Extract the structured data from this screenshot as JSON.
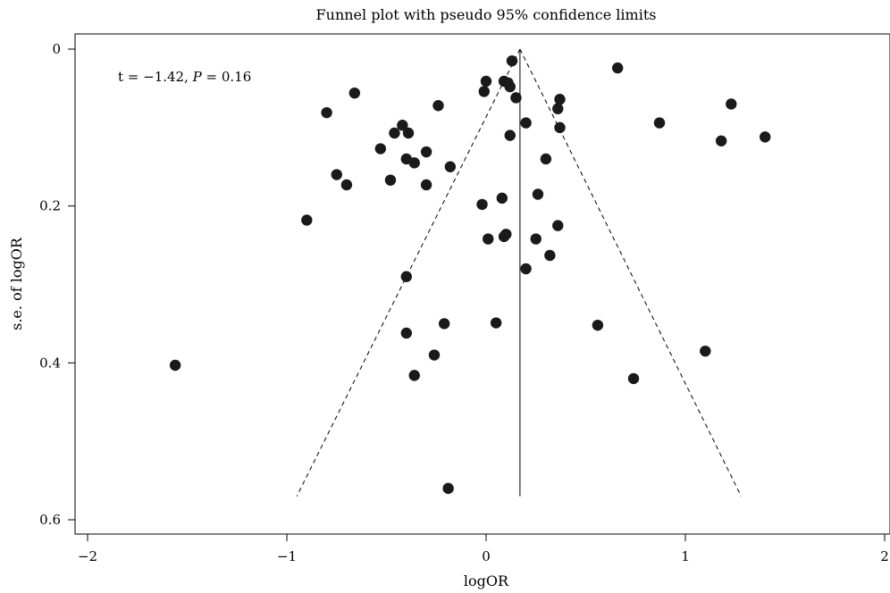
{
  "chart_data": {
    "type": "scatter",
    "title": "Funnel plot with pseudo 95% confidence limits",
    "xlabel": "logOR",
    "ylabel": "s.e. of logOR",
    "annotation": {
      "prefix": "t = −1.42, ",
      "p_label": "P",
      "suffix": " = 0.16"
    },
    "xlim": [
      -2,
      2
    ],
    "ylim_inverted": [
      0,
      0.6
    ],
    "xticks": [
      -2,
      -1,
      0,
      1,
      2
    ],
    "xtick_labels": [
      "−2",
      "−1",
      "0",
      "1",
      "2"
    ],
    "yticks": [
      0,
      0.2,
      0.4,
      0.6
    ],
    "ytick_labels": [
      "0",
      "0.2",
      "0.4",
      "0.6"
    ],
    "grid": false,
    "pooled_logOR": 0.17,
    "funnel": {
      "apex": [
        0.17,
        0.0
      ],
      "left_end": [
        -0.95,
        0.57
      ],
      "right_end": [
        1.28,
        0.57
      ],
      "vertical_line_end_se": 0.57
    },
    "points": [
      {
        "x": 0.13,
        "y": 0.015
      },
      {
        "x": 0.66,
        "y": 0.024
      },
      {
        "x": 0.0,
        "y": 0.041
      },
      {
        "x": 0.09,
        "y": 0.041
      },
      {
        "x": 0.11,
        "y": 0.043
      },
      {
        "x": 0.12,
        "y": 0.048
      },
      {
        "x": -0.01,
        "y": 0.054
      },
      {
        "x": -0.66,
        "y": 0.056
      },
      {
        "x": 0.15,
        "y": 0.062
      },
      {
        "x": 0.37,
        "y": 0.064
      },
      {
        "x": -0.24,
        "y": 0.072
      },
      {
        "x": 1.23,
        "y": 0.07
      },
      {
        "x": 0.36,
        "y": 0.076
      },
      {
        "x": -0.8,
        "y": 0.081
      },
      {
        "x": 0.2,
        "y": 0.094
      },
      {
        "x": 0.87,
        "y": 0.094
      },
      {
        "x": -0.42,
        "y": 0.097
      },
      {
        "x": 0.37,
        "y": 0.1
      },
      {
        "x": -0.46,
        "y": 0.107
      },
      {
        "x": -0.39,
        "y": 0.107
      },
      {
        "x": 0.12,
        "y": 0.11
      },
      {
        "x": 1.4,
        "y": 0.112
      },
      {
        "x": 1.18,
        "y": 0.117
      },
      {
        "x": -0.53,
        "y": 0.127
      },
      {
        "x": -0.3,
        "y": 0.131
      },
      {
        "x": -0.4,
        "y": 0.14
      },
      {
        "x": 0.3,
        "y": 0.14
      },
      {
        "x": -0.36,
        "y": 0.145
      },
      {
        "x": -0.18,
        "y": 0.15
      },
      {
        "x": -0.75,
        "y": 0.16
      },
      {
        "x": -0.48,
        "y": 0.167
      },
      {
        "x": -0.7,
        "y": 0.173
      },
      {
        "x": -0.3,
        "y": 0.173
      },
      {
        "x": 0.26,
        "y": 0.185
      },
      {
        "x": 0.08,
        "y": 0.19
      },
      {
        "x": -0.02,
        "y": 0.198
      },
      {
        "x": -0.9,
        "y": 0.218
      },
      {
        "x": 0.36,
        "y": 0.225
      },
      {
        "x": 0.1,
        "y": 0.236
      },
      {
        "x": 0.09,
        "y": 0.239
      },
      {
        "x": 0.01,
        "y": 0.242
      },
      {
        "x": 0.25,
        "y": 0.242
      },
      {
        "x": 0.32,
        "y": 0.263
      },
      {
        "x": 0.2,
        "y": 0.28
      },
      {
        "x": -0.4,
        "y": 0.29
      },
      {
        "x": -0.21,
        "y": 0.35
      },
      {
        "x": 0.05,
        "y": 0.349
      },
      {
        "x": 0.56,
        "y": 0.352
      },
      {
        "x": -0.4,
        "y": 0.362
      },
      {
        "x": 1.1,
        "y": 0.385
      },
      {
        "x": -0.26,
        "y": 0.39
      },
      {
        "x": -1.56,
        "y": 0.403
      },
      {
        "x": -0.36,
        "y": 0.416
      },
      {
        "x": 0.74,
        "y": 0.42
      },
      {
        "x": -0.19,
        "y": 0.56
      }
    ]
  }
}
